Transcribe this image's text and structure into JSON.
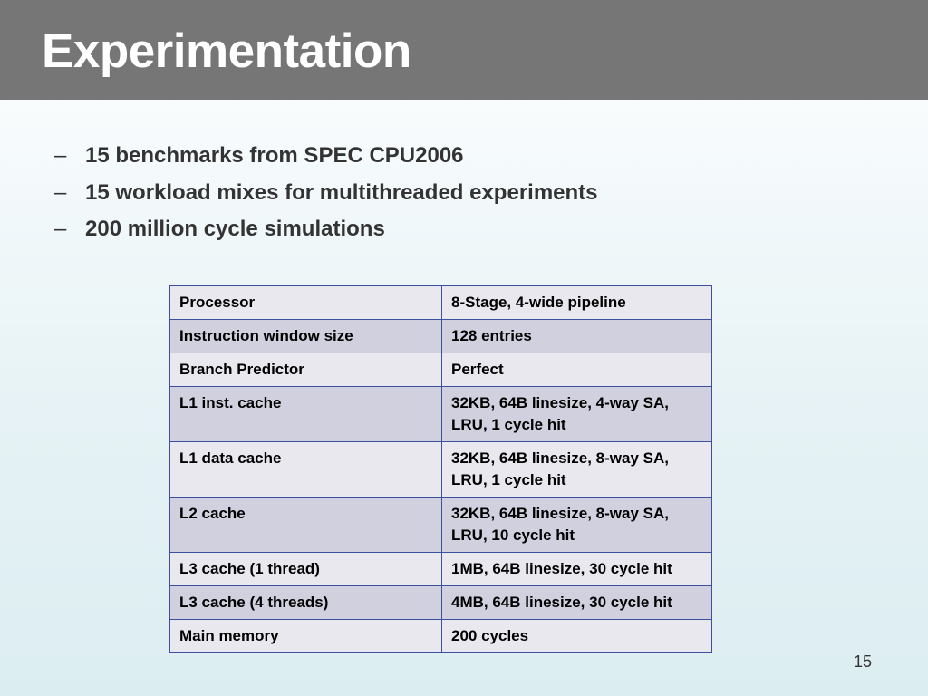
{
  "slide": {
    "title": "Experimentation",
    "page_number": "15"
  },
  "bullets": [
    {
      "dash": "–",
      "text": "15 benchmarks from SPEC CPU2006"
    },
    {
      "dash": "–",
      "text": "15 workload mixes for multithreaded experiments"
    },
    {
      "dash": "–",
      "text": "200 million cycle simulations"
    }
  ],
  "table": {
    "rows": [
      {
        "param": "Processor",
        "value": "8-Stage, 4-wide pipeline"
      },
      {
        "param": "Instruction window size",
        "value": "128 entries"
      },
      {
        "param": "Branch Predictor",
        "value": "Perfect"
      },
      {
        "param": "L1 inst. cache",
        "value": "32KB, 64B linesize, 4-way SA, LRU, 1 cycle hit"
      },
      {
        "param": "L1 data cache",
        "value": "32KB, 64B linesize, 8-way SA, LRU, 1 cycle hit"
      },
      {
        "param": "L2 cache",
        "value": "32KB, 64B linesize, 8-way SA, LRU, 10 cycle hit"
      },
      {
        "param": "L3 cache (1 thread)",
        "value": "1MB, 64B linesize, 30 cycle hit"
      },
      {
        "param": "L3 cache (4 threads)",
        "value": "4MB, 64B linesize, 30 cycle hit"
      },
      {
        "param": "Main memory",
        "value": "200 cycles"
      }
    ]
  }
}
